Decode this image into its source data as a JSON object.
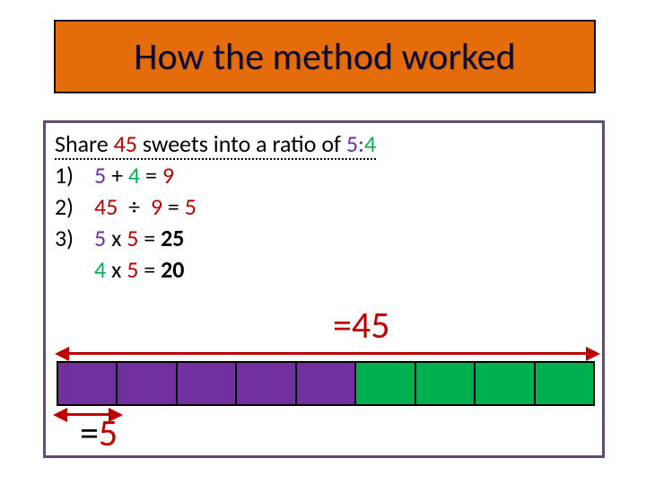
{
  "title": "How the method worked",
  "content": {
    "heading_prefix": "Share ",
    "heading_num": "45",
    "heading_mid": " sweets into a ratio of ",
    "ratio_a": "5:",
    "ratio_b": "4",
    "steps": {
      "s1_num": "1)",
      "s1_a": "5",
      "s1_plus": " + ",
      "s1_b": "4",
      "s1_eq": " = ",
      "s1_res": "9",
      "s2_num": "2)",
      "s2_a": "45",
      "s2_div": "  ÷  ",
      "s2_b": "9",
      "s2_eq": " = ",
      "s2_res": "5",
      "s3_num": "3)",
      "s3_a": "5",
      "s3_x": " x ",
      "s3_b": "5",
      "s3_eq": " = ",
      "s3_res": "25",
      "s4_a": "4",
      "s4_x": " x ",
      "s4_b": "5",
      "s4_eq": " = ",
      "s4_res": "20"
    }
  },
  "eq45": "=45",
  "eq5_prefix": "=",
  "eq5_val": "5",
  "bar": {
    "total_parts": 9,
    "purple_parts": 5,
    "green_parts": 4,
    "purple_color": "#7030a0",
    "green_color": "#00b050",
    "border_color": "#000000"
  },
  "colors": {
    "banner_bg": "#e46c0a",
    "banner_border": "#0a0a32",
    "content_border": "#604a7b",
    "accent_red": "#c00000",
    "accent_green": "#00b050",
    "accent_purple": "#7030a0"
  },
  "typography": {
    "title_fontsize": 42,
    "body_fontsize": 26,
    "eq_fontsize": 42
  }
}
